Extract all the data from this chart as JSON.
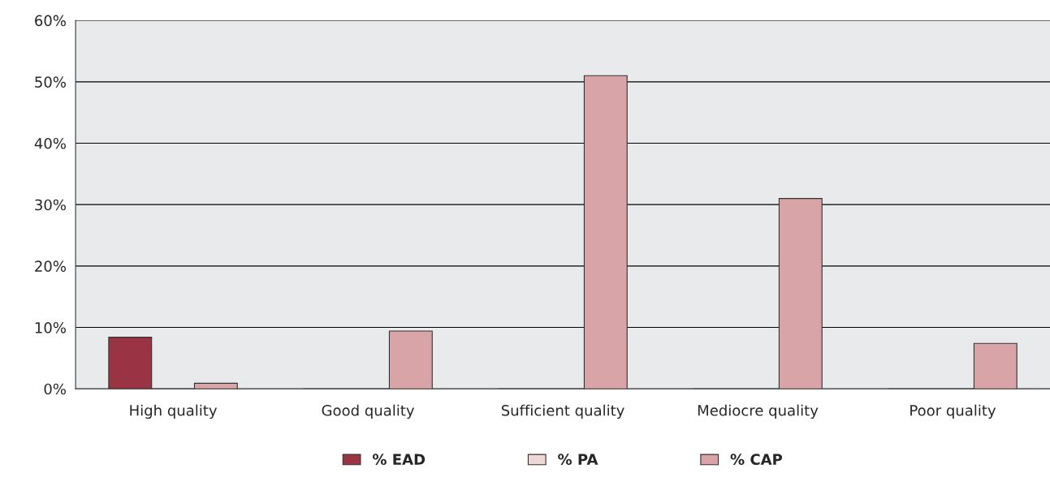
{
  "chart_data": {
    "type": "bar",
    "categories": [
      "High quality",
      "Good quality",
      "Sufficient quality",
      "Mediocre quality",
      "Poor quality"
    ],
    "series": [
      {
        "name": "% EAD",
        "color": "#9a3444",
        "values": [
          8.4,
          0,
          0,
          0,
          0
        ]
      },
      {
        "name": "% PA",
        "color": "#efd6d7",
        "values": [
          0,
          0,
          0,
          0,
          0
        ]
      },
      {
        "name": "% CAP",
        "color": "#d9a4a7",
        "values": [
          0.9,
          9.4,
          51,
          31,
          7.4
        ]
      }
    ],
    "ylim": [
      0,
      60
    ],
    "yticks": [
      {
        "value": 0,
        "label": "0%"
      },
      {
        "value": 10,
        "label": "10%"
      },
      {
        "value": 20,
        "label": "20%"
      },
      {
        "value": 30,
        "label": "30%"
      },
      {
        "value": 40,
        "label": "40%"
      },
      {
        "value": 50,
        "label": "50%"
      },
      {
        "value": 60,
        "label": "60%"
      }
    ],
    "grid": "y",
    "legend": "bottom"
  }
}
